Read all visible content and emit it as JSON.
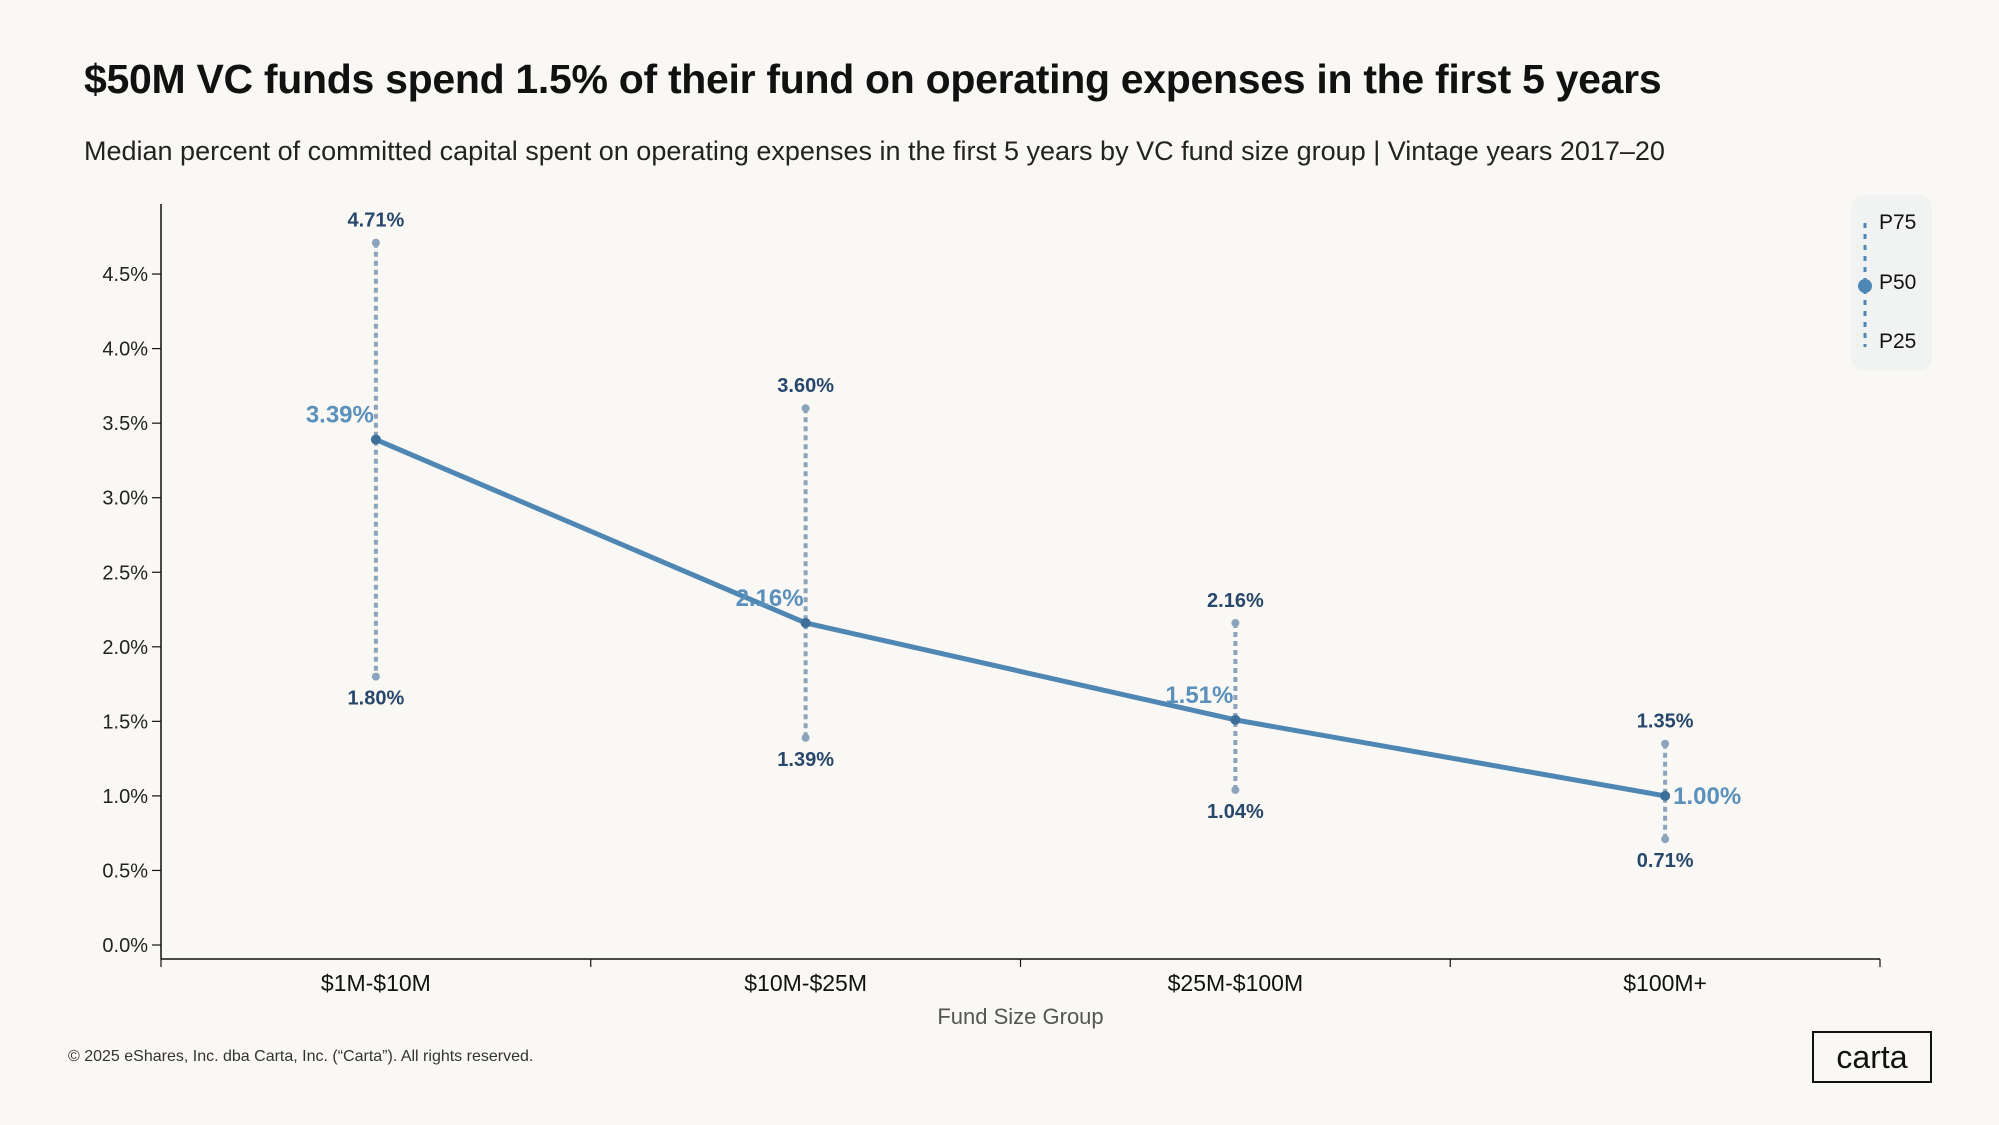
{
  "title": "$50M VC funds spend 1.5% of their fund on operating expenses in the first 5 years",
  "subtitle": "Median percent of committed capital spent on operating expenses in the first 5 years by VC fund size group | Vintage years 2017–20",
  "footer": "© 2025 eShares, Inc. dba Carta, Inc. (“Carta”). All rights reserved.",
  "logo": "carta",
  "legend": {
    "p75": "P75",
    "p50": "P50",
    "p25": "P25"
  },
  "colors": {
    "median": "#4f87b4",
    "whisker": "#8ba4bb",
    "label_dark": "#27476b",
    "label_median": "#5a90bb",
    "background": "#faf8f4"
  },
  "chart_data": {
    "type": "line",
    "xlabel": "Fund Size Group",
    "ylabel": "",
    "categories": [
      "$1M-$10M",
      "$10M-$25M",
      "$25M-$100M",
      "$100M+"
    ],
    "ylim": [
      0,
      5
    ],
    "yticks": [
      "0.0%",
      "0.5%",
      "1.0%",
      "1.5%",
      "2.0%",
      "2.5%",
      "3.0%",
      "3.5%",
      "4.0%",
      "4.5%"
    ],
    "ytick_values": [
      0,
      0.5,
      1,
      1.5,
      2,
      2.5,
      3,
      3.5,
      4,
      4.5
    ],
    "series": [
      {
        "name": "P75",
        "values": [
          4.71,
          3.6,
          2.16,
          1.35
        ],
        "labels": [
          "4.71%",
          "3.60%",
          "2.16%",
          "1.35%"
        ]
      },
      {
        "name": "P50",
        "values": [
          3.39,
          2.16,
          1.51,
          1.0
        ],
        "labels": [
          "3.39%",
          "2.16%",
          "1.51%",
          "1.00%"
        ]
      },
      {
        "name": "P25",
        "values": [
          1.8,
          1.39,
          1.04,
          0.71
        ],
        "labels": [
          "1.80%",
          "1.39%",
          "1.04%",
          "0.71%"
        ]
      }
    ],
    "grid": false,
    "legend_position": "top-right"
  }
}
